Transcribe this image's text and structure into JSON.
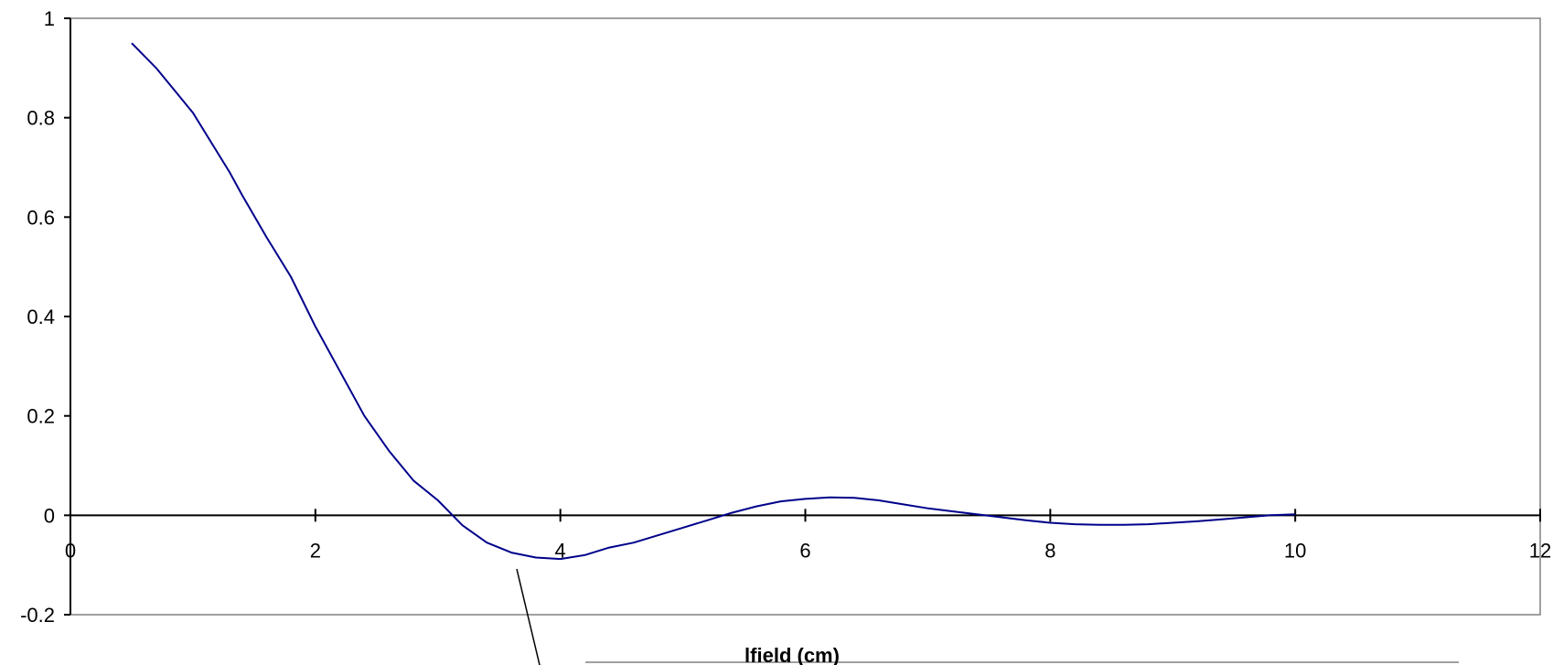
{
  "chart_data": {
    "type": "line",
    "title": "",
    "xlabel": "lfield (cm)",
    "ylabel": "",
    "xlim": [
      0,
      12
    ],
    "ylim": [
      -0.2,
      1
    ],
    "x_ticks": [
      0,
      2,
      4,
      6,
      8,
      10,
      12
    ],
    "y_ticks": [
      1,
      0.8,
      0.6,
      0.4,
      0.2,
      0,
      -0.2
    ],
    "x_tick_labels": [
      "0",
      "2",
      "4",
      "6",
      "8",
      "10",
      "12"
    ],
    "y_tick_labels": [
      "1",
      "0.8",
      "0.6",
      "0.4",
      "0.2",
      "0",
      "-0.2"
    ],
    "grid": false,
    "legend": "none",
    "colors": {
      "series": "#00008B",
      "axes": "#000000",
      "frame": "#808080"
    },
    "series": [
      {
        "points": [
          [
            0.5,
            0.95
          ],
          [
            0.7,
            0.9
          ],
          [
            1.0,
            0.81
          ],
          [
            1.3,
            0.69
          ],
          [
            1.4,
            0.645
          ],
          [
            1.6,
            0.56
          ],
          [
            1.8,
            0.48
          ],
          [
            2.0,
            0.38
          ],
          [
            2.2,
            0.29
          ],
          [
            2.4,
            0.2
          ],
          [
            2.6,
            0.13
          ],
          [
            2.8,
            0.07
          ],
          [
            3.0,
            0.03
          ],
          [
            3.2,
            -0.02
          ],
          [
            3.4,
            -0.055
          ],
          [
            3.6,
            -0.075
          ],
          [
            3.8,
            -0.085
          ],
          [
            4.0,
            -0.088
          ],
          [
            4.2,
            -0.08
          ],
          [
            4.4,
            -0.065
          ],
          [
            4.6,
            -0.055
          ],
          [
            4.8,
            -0.04
          ],
          [
            5.0,
            -0.025
          ],
          [
            5.2,
            -0.01
          ],
          [
            5.4,
            0.005
          ],
          [
            5.6,
            0.018
          ],
          [
            5.8,
            0.028
          ],
          [
            6.0,
            0.033
          ],
          [
            6.2,
            0.036
          ],
          [
            6.4,
            0.035
          ],
          [
            6.6,
            0.03
          ],
          [
            6.8,
            0.022
          ],
          [
            7.0,
            0.014
          ],
          [
            7.2,
            0.008
          ],
          [
            7.4,
            0.002
          ],
          [
            7.6,
            -0.004
          ],
          [
            7.8,
            -0.01
          ],
          [
            8.0,
            -0.015
          ],
          [
            8.2,
            -0.018
          ],
          [
            8.4,
            -0.019
          ],
          [
            8.6,
            -0.019
          ],
          [
            8.8,
            -0.018
          ],
          [
            9.0,
            -0.015
          ],
          [
            9.2,
            -0.012
          ],
          [
            9.4,
            -0.008
          ],
          [
            9.6,
            -0.004
          ],
          [
            9.8,
            0.0
          ],
          [
            10.0,
            0.002
          ]
        ]
      }
    ]
  }
}
